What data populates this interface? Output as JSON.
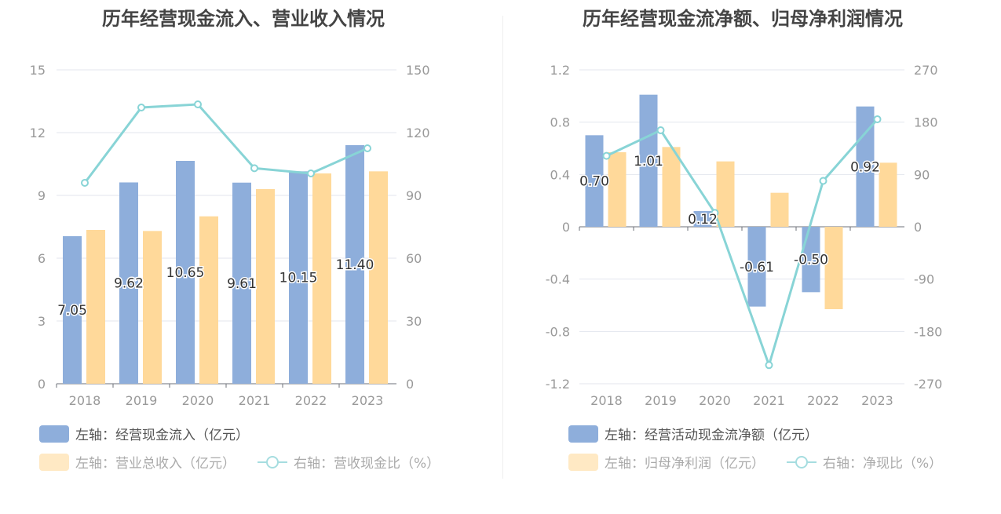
{
  "chart_data": [
    {
      "type": "bar",
      "title": "历年经营现金流入、营业收入情况",
      "categories": [
        "2018",
        "2019",
        "2020",
        "2021",
        "2022",
        "2023"
      ],
      "left_axis": {
        "ylim": [
          0,
          15
        ],
        "ticks": [
          "0",
          "3",
          "6",
          "9",
          "12",
          "15"
        ]
      },
      "right_axis": {
        "ylim": [
          0,
          150
        ],
        "ticks": [
          "0",
          "30",
          "60",
          "90",
          "120",
          "150"
        ]
      },
      "series": [
        {
          "name": "左轴：经营现金流入（亿元）",
          "type": "bar",
          "axis": "left",
          "color": "#8eaedb",
          "values": [
            7.05,
            9.62,
            10.65,
            9.61,
            10.15,
            11.4
          ],
          "labels": [
            "7.05",
            "9.62",
            "10.65",
            "9.61",
            "10.15",
            "11.40"
          ]
        },
        {
          "name": "左轴：营业总收入（亿元）",
          "type": "bar",
          "axis": "left",
          "color": "#ffd99a",
          "values": [
            7.35,
            7.3,
            8.0,
            9.3,
            10.05,
            10.15
          ]
        },
        {
          "name": "右轴：营收现金比（%）",
          "type": "line",
          "axis": "right",
          "color": "#88d4d6",
          "values": [
            96,
            132,
            133.5,
            103,
            100.5,
            112.5
          ]
        }
      ],
      "grid": true,
      "legend_position": "bottom-left"
    },
    {
      "type": "bar",
      "title": "历年经营现金流净额、归母净利润情况",
      "categories": [
        "2018",
        "2019",
        "2020",
        "2021",
        "2022",
        "2023"
      ],
      "left_axis": {
        "ylim": [
          -1.2,
          1.2
        ],
        "ticks": [
          "-1.2",
          "-0.8",
          "-0.4",
          "0",
          "0.4",
          "0.8",
          "1.2"
        ]
      },
      "right_axis": {
        "ylim": [
          -270,
          270
        ],
        "ticks": [
          "-270",
          "-180",
          "-90",
          "0",
          "90",
          "180",
          "270"
        ]
      },
      "series": [
        {
          "name": "左轴：经营活动现金流净额（亿元）",
          "type": "bar",
          "axis": "left",
          "color": "#8eaedb",
          "values": [
            0.7,
            1.01,
            0.12,
            -0.61,
            -0.5,
            0.92
          ],
          "labels": [
            "0.70",
            "1.01",
            "0.12",
            "-0.61",
            "-0.50",
            "0.92"
          ]
        },
        {
          "name": "左轴：归母净利润（亿元）",
          "type": "bar",
          "axis": "left",
          "color": "#ffd99a",
          "values": [
            0.57,
            0.61,
            0.5,
            0.26,
            -0.63,
            0.49
          ]
        },
        {
          "name": "右轴：净现比（%）",
          "type": "line",
          "axis": "right",
          "color": "#88d4d6",
          "values": [
            122,
            166,
            24,
            -238,
            79,
            185
          ]
        }
      ],
      "grid": true,
      "legend_position": "bottom-left"
    }
  ]
}
